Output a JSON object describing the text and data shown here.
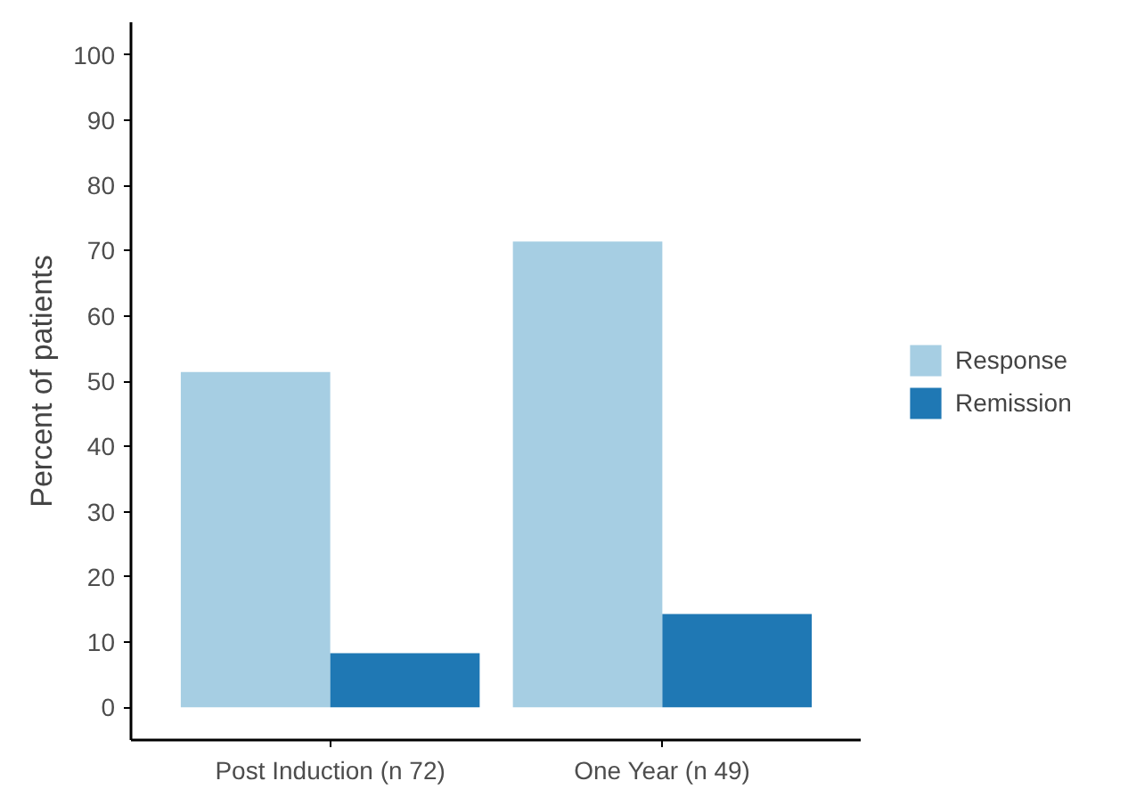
{
  "chart_data": {
    "type": "bar",
    "ylabel": "Percent of patients",
    "categories": [
      "Post Induction (n 72)",
      "One Year (n 49)"
    ],
    "series": [
      {
        "name": "Response",
        "color": "#a6cee3",
        "values": [
          51.4,
          71.4
        ]
      },
      {
        "name": "Remission",
        "color": "#1f78b4",
        "values": [
          8.3,
          14.3
        ]
      }
    ],
    "ylim": [
      -5,
      105
    ],
    "yticks": [
      0,
      10,
      20,
      30,
      40,
      50,
      60,
      70,
      80,
      90,
      100
    ],
    "grid": false,
    "legend": "right"
  }
}
